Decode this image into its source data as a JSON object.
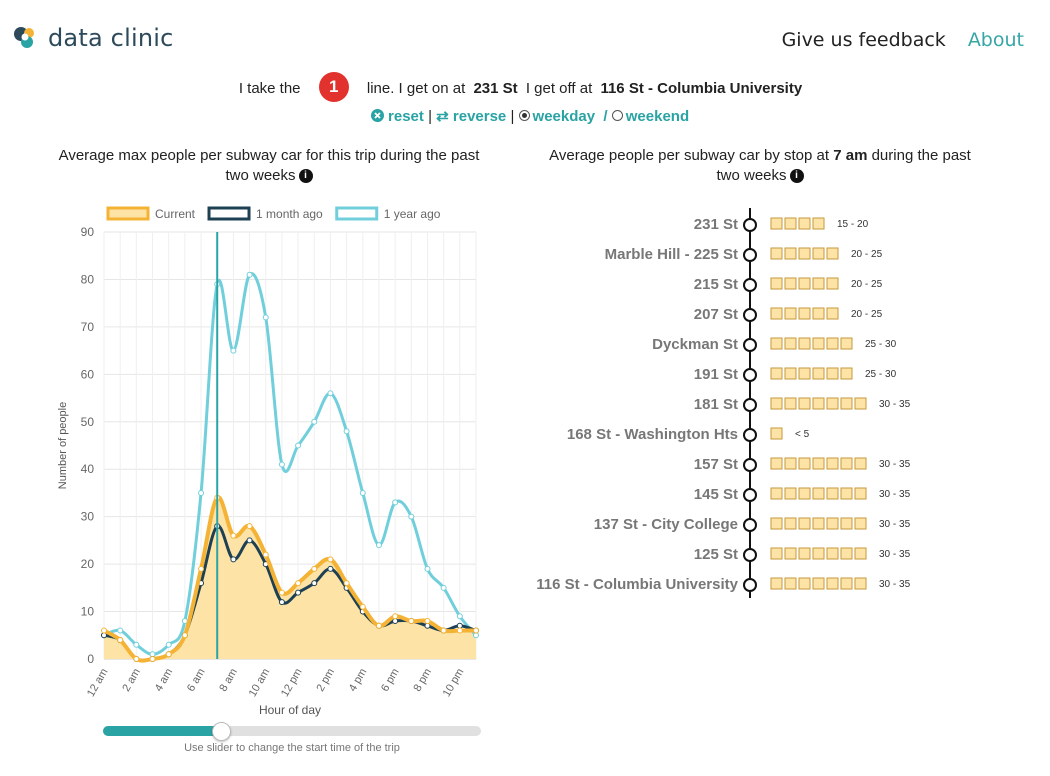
{
  "header": {
    "logo_text": "data clinic",
    "nav_feedback": "Give us feedback",
    "nav_about": "About"
  },
  "trip": {
    "prefix": "I take the",
    "line": "1",
    "line_color": "#e2322e",
    "middle1": "line. I get on at",
    "origin": "231 St",
    "middle2": "I get off at",
    "destination": "116 St - Columbia University"
  },
  "controls": {
    "reset": "reset",
    "reverse": "reverse",
    "sep": "|",
    "weekday": "weekday",
    "slash": "/",
    "weekend": "weekend",
    "selected": "weekday"
  },
  "left_panel": {
    "title_line1": "Average max people per subway car for this trip during the past",
    "title_line2": "two weeks",
    "slider_caption": "Use slider to change the start time of the trip",
    "slider_value": 0.31
  },
  "right_panel": {
    "title_pre": "Average people per subway car by stop at",
    "title_time": "7 am",
    "title_post": "during the past",
    "title_line2": "two weeks"
  },
  "chart_data": [
    {
      "type": "area",
      "ylabel": "Number of people",
      "xlabel": "Hour of day",
      "ylim": [
        0,
        90
      ],
      "yticks": [
        0,
        10,
        20,
        30,
        40,
        50,
        60,
        70,
        80,
        90
      ],
      "xticks": [
        "12 am",
        "2 am",
        "4 am",
        "6 am",
        "8 am",
        "10 am",
        "12 pm",
        "2 pm",
        "4 pm",
        "6 pm",
        "8 pm",
        "10 pm"
      ],
      "x": [
        0,
        1,
        2,
        3,
        4,
        5,
        6,
        7,
        8,
        9,
        10,
        11,
        12,
        13,
        14,
        15,
        16,
        17,
        18,
        19,
        20,
        21,
        22,
        23
      ],
      "marker_hour": 7,
      "legend_position": "top",
      "grid": true,
      "series": [
        {
          "name": "Current",
          "color": "#f5b335",
          "fill": "#fde3a6",
          "values": [
            6,
            4,
            0,
            0,
            1,
            5,
            19,
            34,
            26,
            28,
            22,
            14,
            16,
            19,
            21,
            16,
            11,
            7,
            9,
            8,
            8,
            6,
            6,
            6
          ]
        },
        {
          "name": "1 month ago",
          "color": "#1e4053",
          "values": [
            5,
            4,
            0,
            0,
            1,
            5,
            16,
            28,
            21,
            25,
            20,
            12,
            14,
            16,
            19,
            15,
            10,
            7,
            8,
            8,
            7,
            6,
            7,
            6
          ]
        },
        {
          "name": "1 year ago",
          "color": "#71cfdc",
          "values": [
            5,
            6,
            3,
            1,
            3,
            8,
            35,
            79,
            65,
            81,
            72,
            41,
            45,
            50,
            56,
            48,
            35,
            24,
            33,
            30,
            19,
            15,
            9,
            5
          ]
        }
      ]
    },
    {
      "type": "bar",
      "orientation": "horizontal",
      "unit_per_box": 5,
      "categories": [
        "231 St",
        "Marble Hill - 225 St",
        "215 St",
        "207 St",
        "Dyckman St",
        "191 St",
        "181 St",
        "168 St - Washington Hts",
        "157 St",
        "145 St",
        "137 St - City College",
        "125 St",
        "116 St - Columbia University"
      ],
      "values": [
        4,
        5,
        5,
        5,
        6,
        6,
        7,
        1,
        7,
        7,
        7,
        7,
        7
      ],
      "labels": [
        "15 - 20",
        "20 - 25",
        "20 - 25",
        "20 - 25",
        "25 - 30",
        "25 - 30",
        "30 - 35",
        "< 5",
        "30 - 35",
        "30 - 35",
        "30 - 35",
        "30 - 35",
        "30 - 35"
      ]
    }
  ]
}
